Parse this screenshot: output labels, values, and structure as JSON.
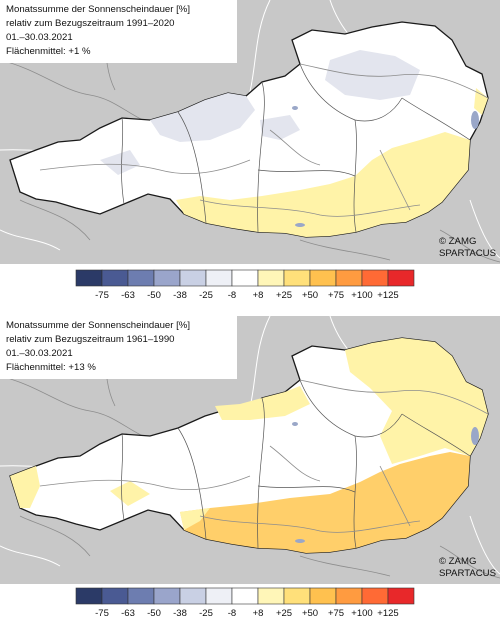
{
  "maps": [
    {
      "title": "Monatssumme der Sonnenscheindauer [%]",
      "reference": "relativ zum Bezugszeitraum 1991–2020",
      "period": "01.–30.03.2021",
      "mean": "Flächenmittel: +1 %",
      "credit_org": "© ZAMG",
      "credit_dataset": "SPARTACUS"
    },
    {
      "title": "Monatssumme der Sonnenscheindauer [%]",
      "reference": "relativ zum Bezugszeitraum 1961–1990",
      "period": "01.–30.03.2021",
      "mean": "Flächenmittel: +13 %",
      "credit_org": "© ZAMG",
      "credit_dataset": "SPARTACUS"
    }
  ],
  "legend": {
    "labels": [
      "-75",
      "-63",
      "-50",
      "-38",
      "-25",
      "-8",
      "+8",
      "+25",
      "+50",
      "+75",
      "+100",
      "+125"
    ],
    "colors": [
      "#2b3a67",
      "#4a5a93",
      "#6d7db0",
      "#9aa5cb",
      "#c9d0e4",
      "#eef0f6",
      "#ffffff",
      "#fff6b8",
      "#ffe07a",
      "#ffc14f",
      "#ff9b40",
      "#ff6a35",
      "#e8282a"
    ]
  },
  "colors": {
    "neighbor_land": "#c8c8c8",
    "austria_fill": "#ffffff",
    "lighter_gray_region": "#e3e5ee",
    "yellow_region": "#fff3a8",
    "orange_region": "#ffcf6a",
    "rivers": "#8d8d8d",
    "border": "#1a1a1a"
  }
}
